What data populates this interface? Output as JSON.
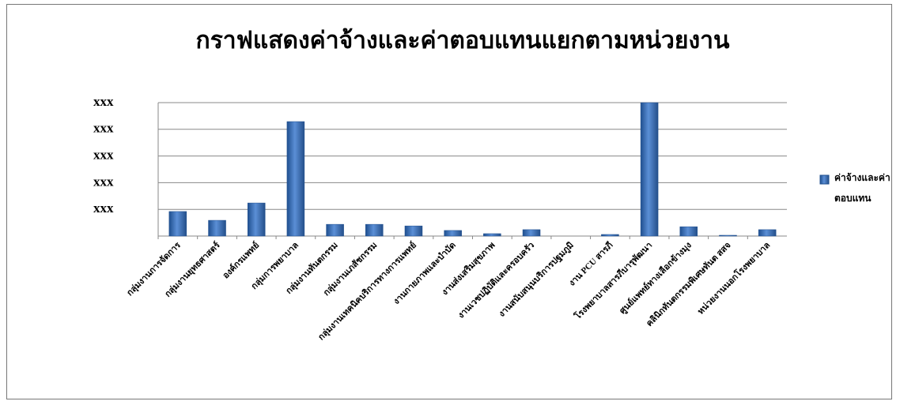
{
  "chart_data": {
    "type": "bar",
    "title": "กราฟแสดงค่าจ้างและค่าตอบแทนแยกตามหน่วยงาน",
    "categories": [
      "กลุ่มงานการจัดการ",
      "กลุ่มงานยุทธศาสตร์",
      "องค์กรแพทย์",
      "กลุ่มการพยาบาล",
      "กลุ่มงานทันตกรรม",
      "กลุ่มงานเภสัชกรรม",
      "กลุ่มงานเทคนิคบริการทางการแพทย์",
      "งานกายภาพและบำบัด",
      "งานส่งเสริมสุขภาพ",
      "งานเวชปฏิบัติและครอบครัว",
      "งานสนับสนุนบริการปฐมภูมิ",
      "งาน PCU สารภี",
      "โรงพยาบาลสารภีบารุพัฒนา",
      "ศูนย์แพทย์ทางเลือกข้างมุง",
      "คลินิกทันตกรรมพิเศษทันต สสจ",
      "หน่วยงานนอกโรงพยาบาล"
    ],
    "series": [
      {
        "name": "ค่าจ้างและค่าตอบแทน",
        "color": "#3a6fb8",
        "values": [
          0.92,
          0.59,
          1.24,
          4.29,
          0.44,
          0.44,
          0.38,
          0.21,
          0.09,
          0.24,
          0,
          0.06,
          5.0,
          0.35,
          0.03,
          0.24
        ]
      }
    ],
    "ylim": [
      0,
      5
    ],
    "yticks": [
      {
        "value": 1,
        "label": "xxx"
      },
      {
        "value": 2,
        "label": "xxx"
      },
      {
        "value": 3,
        "label": "xxx"
      },
      {
        "value": 4,
        "label": "xxx"
      },
      {
        "value": 5,
        "label": "xxx"
      }
    ],
    "grid": true,
    "legend": "right"
  }
}
